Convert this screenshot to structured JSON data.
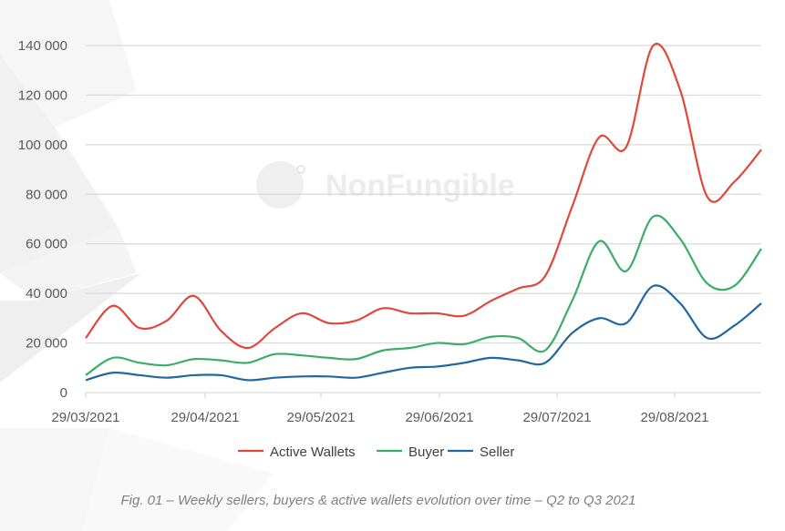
{
  "chart_data": {
    "type": "line",
    "title": "",
    "xlabel": "",
    "ylabel": "",
    "ylim": [
      0,
      140000
    ],
    "yticks": [
      0,
      20000,
      40000,
      60000,
      80000,
      100000,
      120000,
      140000
    ],
    "ytick_labels": [
      "0",
      "20 000",
      "40 000",
      "60 000",
      "80 000",
      "100 000",
      "120 000",
      "140 000"
    ],
    "xtick_labels": [
      "29/03/2021",
      "29/04/2021",
      "29/05/2021",
      "29/06/2021",
      "29/07/2021",
      "29/08/2021"
    ],
    "points_count": 26,
    "grid": true,
    "legend_position": "bottom",
    "series": [
      {
        "name": "Active Wallets",
        "color": "#e0483b",
        "values": [
          22000,
          35000,
          26000,
          29000,
          39000,
          25000,
          18000,
          26000,
          32000,
          28000,
          29000,
          34000,
          32000,
          32000,
          31000,
          37000,
          42000,
          47000,
          75000,
          103000,
          99000,
          140000,
          122000,
          79000,
          85000,
          98000
        ]
      },
      {
        "name": "Buyer",
        "color": "#3aae66",
        "values": [
          7000,
          14000,
          12000,
          11000,
          13500,
          13000,
          12000,
          15500,
          15000,
          14000,
          13500,
          17000,
          18000,
          20000,
          19500,
          22500,
          22000,
          17000,
          37000,
          61000,
          49000,
          71000,
          62000,
          44000,
          43000,
          58000
        ]
      },
      {
        "name": "Seller",
        "color": "#23679f",
        "values": [
          5000,
          8000,
          7000,
          6000,
          7000,
          7000,
          5000,
          6000,
          6500,
          6500,
          6000,
          8000,
          10000,
          10500,
          12000,
          14000,
          13000,
          12000,
          24000,
          30000,
          28000,
          43000,
          36000,
          22000,
          27000,
          36000
        ]
      }
    ],
    "caption": "Fig. 01 – Weekly sellers, buyers & active wallets evolution over time – Q2 to Q3 2021"
  },
  "watermark": "NonFungible"
}
